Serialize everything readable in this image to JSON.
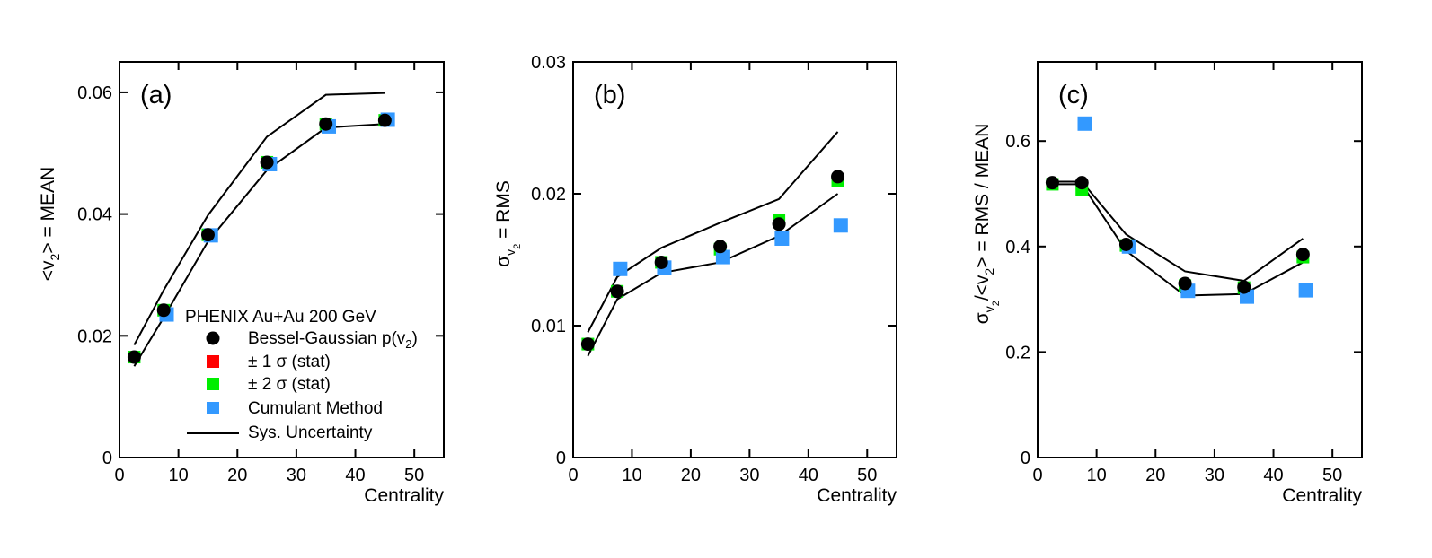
{
  "colors": {
    "bessel": "#000000",
    "stat1": "#ff0000",
    "stat2": "#00ee00",
    "cumulant": "#3399ff",
    "sys": "#000000"
  },
  "legend": {
    "header": "PHENIX Au+Au 200 GeV",
    "items": [
      {
        "key": "bessel",
        "marker": "circle",
        "label": "Bessel-Gaussian p(v",
        "sub": "2",
        "suffix": ")"
      },
      {
        "key": "stat1",
        "marker": "square",
        "label": "± 1 σ (stat)"
      },
      {
        "key": "stat2",
        "marker": "square",
        "label": "± 2 σ (stat)"
      },
      {
        "key": "cumulant",
        "marker": "square",
        "label": "Cumulant Method"
      },
      {
        "key": "sys",
        "marker": "line",
        "label": "Sys. Uncertainty"
      }
    ]
  },
  "chart_data": [
    {
      "type": "scatter",
      "panel": "(a)",
      "xlabel": "Centrality",
      "ylabel_parts": [
        "<v",
        "2",
        "> = MEAN"
      ],
      "xlim": [
        0,
        55
      ],
      "ylim": [
        0,
        0.065
      ],
      "xticks": [
        0,
        10,
        20,
        30,
        40,
        50
      ],
      "xtick_labels": [
        "0",
        "10",
        "20",
        "30",
        "40",
        "50"
      ],
      "yticks": [
        0,
        0.02,
        0.04,
        0.06
      ],
      "ytick_labels": [
        "0",
        "0.02",
        "0.04",
        "0.06"
      ],
      "series": [
        {
          "key": "bessel",
          "name": "Bessel-Gaussian p(v2)",
          "x": [
            2.5,
            7.5,
            15,
            25,
            35,
            45
          ],
          "y": [
            0.0165,
            0.0242,
            0.0366,
            0.0485,
            0.0548,
            0.0554
          ]
        },
        {
          "key": "stat2",
          "name": "± 2 σ (stat)",
          "x": [
            2.5,
            7.5,
            15,
            25,
            35,
            45
          ],
          "y": [
            0.0165,
            0.0242,
            0.0366,
            0.0485,
            0.0548,
            0.0554
          ]
        },
        {
          "key": "cumulant",
          "name": "Cumulant Method",
          "x": [
            8,
            15.5,
            25.5,
            35.5,
            45.5
          ],
          "y": [
            0.0235,
            0.0365,
            0.0482,
            0.0544,
            0.0555
          ]
        }
      ],
      "sys_band": {
        "upper": {
          "x": [
            2.5,
            7.5,
            15,
            25,
            35,
            45
          ],
          "y": [
            0.0185,
            0.0275,
            0.0398,
            0.0527,
            0.0596,
            0.0599
          ]
        },
        "lower": {
          "x": [
            2.5,
            7.5,
            15,
            25,
            35,
            45
          ],
          "y": [
            0.015,
            0.023,
            0.0355,
            0.0472,
            0.0542,
            0.0548
          ]
        }
      }
    },
    {
      "type": "scatter",
      "panel": "(b)",
      "xlabel": "Centrality",
      "ylabel_parts": [
        "σ",
        "v",
        "2",
        " = RMS"
      ],
      "xlim": [
        0,
        55
      ],
      "ylim": [
        0,
        0.03
      ],
      "xticks": [
        0,
        10,
        20,
        30,
        40,
        50
      ],
      "xtick_labels": [
        "0",
        "10",
        "20",
        "30",
        "40",
        "50"
      ],
      "yticks": [
        0,
        0.01,
        0.02,
        0.03
      ],
      "ytick_labels": [
        "0",
        "0.01",
        "0.02",
        "0.03"
      ],
      "series": [
        {
          "key": "bessel",
          "name": "Bessel-Gaussian p(v2)",
          "x": [
            2.5,
            7.5,
            15,
            25,
            35,
            45
          ],
          "y": [
            0.0086,
            0.0126,
            0.0148,
            0.016,
            0.0177,
            0.0213
          ]
        },
        {
          "key": "stat2",
          "name": "± 2 σ (stat)",
          "x": [
            2.5,
            7.5,
            15,
            25,
            35,
            45
          ],
          "y": [
            0.0086,
            0.0126,
            0.0148,
            0.0158,
            0.018,
            0.021
          ]
        },
        {
          "key": "cumulant",
          "name": "Cumulant Method",
          "x": [
            8,
            15.5,
            25.5,
            35.5,
            45.5
          ],
          "y": [
            0.0143,
            0.0144,
            0.0152,
            0.0166,
            0.0176
          ]
        }
      ],
      "sys_band": {
        "upper": {
          "x": [
            2.5,
            7.5,
            15,
            25,
            35,
            45
          ],
          "y": [
            0.0095,
            0.0137,
            0.0159,
            0.0178,
            0.0196,
            0.0247
          ]
        },
        "lower": {
          "x": [
            2.5,
            7.5,
            15,
            25,
            35,
            45
          ],
          "y": [
            0.0077,
            0.012,
            0.014,
            0.0148,
            0.0168,
            0.02
          ]
        }
      }
    },
    {
      "type": "scatter",
      "panel": "(c)",
      "xlabel": "Centrality",
      "ylabel_parts": [
        "σ",
        "v",
        "2",
        "/<v",
        "2",
        "> = RMS / MEAN"
      ],
      "xlim": [
        0,
        55
      ],
      "ylim": [
        0,
        0.75
      ],
      "xticks": [
        0,
        10,
        20,
        30,
        40,
        50
      ],
      "xtick_labels": [
        "0",
        "10",
        "20",
        "30",
        "40",
        "50"
      ],
      "yticks": [
        0,
        0.2,
        0.4,
        0.6
      ],
      "ytick_labels": [
        "0",
        "0.2",
        "0.4",
        "0.6"
      ],
      "series": [
        {
          "key": "bessel",
          "name": "Bessel-Gaussian p(v2)",
          "x": [
            2.5,
            7.5,
            15,
            25,
            35,
            45
          ],
          "y": [
            0.521,
            0.521,
            0.404,
            0.33,
            0.323,
            0.385
          ]
        },
        {
          "key": "stat2",
          "name": "± 2 σ (stat)",
          "x": [
            2.5,
            7.5,
            15,
            25,
            35,
            45
          ],
          "y": [
            0.518,
            0.508,
            0.402,
            0.326,
            0.322,
            0.38
          ]
        },
        {
          "key": "cumulant",
          "name": "Cumulant Method",
          "x": [
            8,
            15.5,
            25.5,
            35.5,
            45.5
          ],
          "y": [
            0.633,
            0.4,
            0.316,
            0.305,
            0.317
          ]
        }
      ],
      "sys_band": {
        "upper": {
          "x": [
            2.5,
            7.5,
            15,
            25,
            35,
            45
          ],
          "y": [
            0.523,
            0.523,
            0.423,
            0.353,
            0.335,
            0.415
          ]
        },
        "lower": {
          "x": [
            2.5,
            7.5,
            15,
            25,
            35,
            45
          ],
          "y": [
            0.518,
            0.518,
            0.392,
            0.307,
            0.31,
            0.37
          ]
        }
      }
    }
  ]
}
